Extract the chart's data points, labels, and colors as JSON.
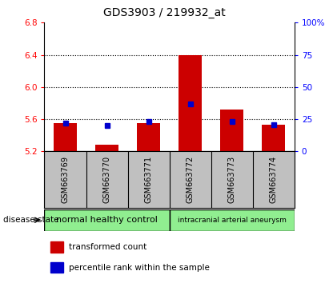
{
  "title": "GDS3903 / 219932_at",
  "samples": [
    "GSM663769",
    "GSM663770",
    "GSM663771",
    "GSM663772",
    "GSM663773",
    "GSM663774"
  ],
  "transformed_counts": [
    5.55,
    5.28,
    5.55,
    6.4,
    5.72,
    5.53
  ],
  "percentile_ranks": [
    22,
    20,
    23,
    37,
    23,
    21
  ],
  "ylim_left": [
    5.2,
    6.8
  ],
  "ylim_right": [
    0,
    100
  ],
  "yticks_left": [
    5.2,
    5.6,
    6.0,
    6.4,
    6.8
  ],
  "yticks_right": [
    0,
    25,
    50,
    75,
    100
  ],
  "bar_color": "#CC0000",
  "percentile_color": "#0000CC",
  "bar_width": 0.55,
  "xlabel_area_color": "#C0C0C0",
  "group1_label": "normal healthy control",
  "group2_label": "intracranial arterial aneurysm",
  "group_color": "#90EE90",
  "disease_state_label": "disease state",
  "legend_red": "transformed count",
  "legend_blue": "percentile rank within the sample"
}
